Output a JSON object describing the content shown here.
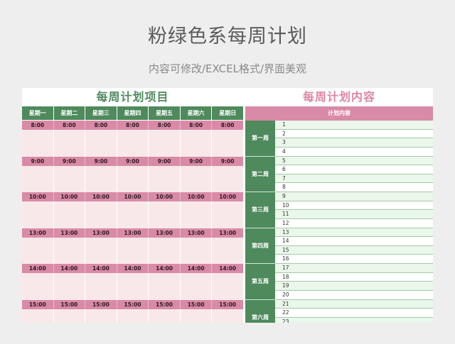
{
  "page": {
    "title": "粉绿色系每周计划",
    "subtitle": "内容可修改/EXCEL格式/界面美观"
  },
  "left": {
    "title": "每周计划项目",
    "days": [
      "星期一",
      "星期二",
      "星期三",
      "星期四",
      "星期五",
      "星期六",
      "星期日"
    ],
    "time_slots": [
      "8:00",
      "9:00",
      "10:00",
      "13:00",
      "14:00",
      "15:00"
    ]
  },
  "right": {
    "title": "每周计划内容",
    "header": "计划内容",
    "weeks": [
      {
        "label": "第一周",
        "items": [
          "1",
          "2",
          "3",
          "4"
        ]
      },
      {
        "label": "第二周",
        "items": [
          "5",
          "6",
          "7",
          "8"
        ]
      },
      {
        "label": "第三周",
        "items": [
          "9",
          "10",
          "11",
          "12"
        ]
      },
      {
        "label": "第四周",
        "items": [
          "13",
          "14",
          "15",
          "16"
        ]
      },
      {
        "label": "第五周",
        "items": [
          "17",
          "18",
          "19",
          "20"
        ]
      },
      {
        "label": "第六周",
        "items": [
          "21",
          "22",
          "23",
          "24"
        ]
      }
    ]
  },
  "colors": {
    "green": "#4e8a5c",
    "pink": "#d98aa6",
    "light_pink": "#f9e8ea",
    "light_green": "#eaf7ea",
    "title_green": "#4f8a5f",
    "title_pink": "#de85a5"
  }
}
